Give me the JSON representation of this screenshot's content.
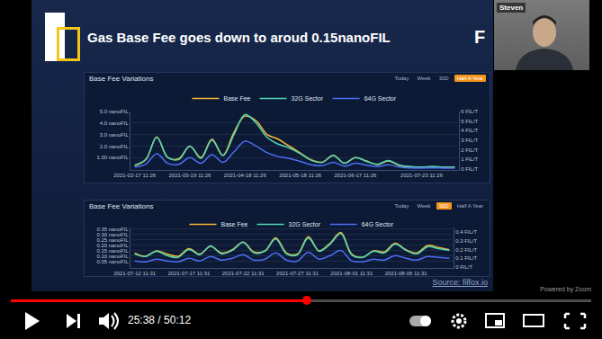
{
  "slide": {
    "title": "Gas Base Fee goes down to aroud 0.15nanoFIL",
    "logo": "F",
    "source": "Source: filfox.io",
    "watermark": "Powered by Zoom"
  },
  "webcam": {
    "name": "Steven"
  },
  "player": {
    "time": "25:38 / 50:12"
  },
  "panels": [
    {
      "buttons": [
        "Today",
        "Week",
        "30D",
        "Half A Year"
      ],
      "selected": "Half A Year"
    },
    {
      "buttons": [
        "Today",
        "Week",
        "30D",
        "Half A Year"
      ],
      "selected": "30D"
    }
  ],
  "chart_data": [
    {
      "type": "line",
      "title": "Base Fee Variations",
      "categories": [
        "2021-02-17 11:26",
        null,
        null,
        null,
        null,
        "2021-03-19 11:26",
        null,
        null,
        null,
        null,
        "2021-04-18 11:26",
        null,
        null,
        null,
        null,
        "2021-05-18 11:26",
        null,
        null,
        null,
        null,
        "2021-06-17 11:26",
        null,
        null,
        null,
        null,
        null,
        "2021-07-23 11:26",
        null,
        null,
        null
      ],
      "series": [
        {
          "name": "Base Fee",
          "color": "#f7b731",
          "values": [
            0.3,
            0.8,
            2.8,
            1.0,
            0.9,
            2.0,
            1.0,
            2.6,
            1.2,
            3.2,
            4.6,
            4.2,
            3.0,
            2.6,
            2.0,
            1.4,
            0.8,
            0.6,
            1.2,
            0.5,
            1.0,
            0.7,
            0.4,
            0.7,
            0.3,
            0.2,
            0.15,
            0.2,
            0.15,
            0.15
          ]
        },
        {
          "name": "32G Sector",
          "color": "#4fd6b4",
          "axis": "y2",
          "values": [
            0.4,
            1.0,
            3.3,
            1.2,
            1.0,
            2.4,
            1.1,
            3.0,
            1.4,
            3.6,
            5.7,
            4.8,
            3.3,
            2.6,
            2.2,
            1.6,
            0.9,
            0.7,
            1.4,
            0.6,
            1.2,
            0.8,
            0.5,
            0.9,
            0.4,
            0.25,
            0.2,
            0.25,
            0.2,
            0.2
          ]
        },
        {
          "name": "64G Sector",
          "color": "#4c6ef5",
          "axis": "y2",
          "values": [
            0.2,
            0.5,
            1.6,
            0.6,
            0.5,
            1.2,
            0.6,
            1.5,
            0.7,
            1.8,
            2.9,
            2.4,
            1.7,
            1.3,
            1.1,
            0.8,
            0.45,
            0.35,
            0.7,
            0.3,
            0.6,
            0.4,
            0.25,
            0.45,
            0.2,
            0.12,
            0.1,
            0.12,
            0.1,
            0.1
          ]
        }
      ],
      "ylim": [
        0,
        5
      ],
      "yticks": [
        {
          "value": 1,
          "label": "1.00 nanoFIL"
        },
        {
          "value": 2,
          "label": "2.0 nanoFIL"
        },
        {
          "value": 3,
          "label": "3.0 nanoFIL"
        },
        {
          "value": 4,
          "label": "4.0 nanoFIL"
        },
        {
          "value": 5,
          "label": "5.0 nanoFIL"
        }
      ],
      "y2lim": [
        0,
        6
      ],
      "y2ticks": [
        {
          "value": 0,
          "label": "0 FIL/T"
        },
        {
          "value": 1,
          "label": "1 FIL/T"
        },
        {
          "value": 2,
          "label": "2 FIL/T"
        },
        {
          "value": 3,
          "label": "3 FIL/T"
        },
        {
          "value": 4,
          "label": "4 FIL/T"
        },
        {
          "value": 5,
          "label": "5 FIL/T"
        },
        {
          "value": 6,
          "label": "6 FIL/T"
        }
      ],
      "grid": true,
      "legend": "top",
      "line_style": "smooth"
    },
    {
      "type": "line",
      "title": "Base Fee Variations",
      "categories": [
        "2021-07-12 11:31",
        null,
        null,
        null,
        null,
        "2021-07-17 11:31",
        null,
        null,
        null,
        null,
        "2021-07-22 11:31",
        null,
        null,
        null,
        null,
        "2021-07-27 11:31",
        null,
        null,
        null,
        null,
        "2021-08-01 11:31",
        null,
        null,
        null,
        null,
        "2021-08-06 11:31",
        null,
        null,
        null,
        null
      ],
      "series": [
        {
          "name": "Base Fee",
          "color": "#f7b731",
          "values": [
            0.13,
            0.1,
            0.15,
            0.12,
            0.1,
            0.17,
            0.12,
            0.19,
            0.13,
            0.16,
            0.23,
            0.14,
            0.15,
            0.27,
            0.13,
            0.12,
            0.28,
            0.15,
            0.22,
            0.32,
            0.12,
            0.09,
            0.15,
            0.14,
            0.22,
            0.16,
            0.13,
            0.2,
            0.18,
            0.16
          ]
        },
        {
          "name": "32G Sector",
          "color": "#4fd6b4",
          "axis": "y2",
          "values": [
            0.15,
            0.12,
            0.18,
            0.13,
            0.11,
            0.2,
            0.14,
            0.24,
            0.15,
            0.19,
            0.28,
            0.16,
            0.18,
            0.32,
            0.15,
            0.14,
            0.33,
            0.18,
            0.26,
            0.38,
            0.14,
            0.11,
            0.18,
            0.16,
            0.26,
            0.19,
            0.15,
            0.23,
            0.21,
            0.19
          ]
        },
        {
          "name": "64G Sector",
          "color": "#4c6ef5",
          "axis": "y2",
          "values": [
            0.07,
            0.06,
            0.09,
            0.07,
            0.06,
            0.1,
            0.07,
            0.12,
            0.08,
            0.1,
            0.14,
            0.08,
            0.09,
            0.16,
            0.08,
            0.07,
            0.17,
            0.09,
            0.13,
            0.19,
            0.07,
            0.06,
            0.09,
            0.08,
            0.13,
            0.1,
            0.08,
            0.12,
            0.11,
            0.1
          ]
        }
      ],
      "ylim": [
        0,
        0.365
      ],
      "yticks": [
        {
          "value": 0.05,
          "label": "0.05 nanoFIL"
        },
        {
          "value": 0.1,
          "label": "0.10 nanoFIL"
        },
        {
          "value": 0.15,
          "label": "0.15 nanoFIL"
        },
        {
          "value": 0.2,
          "label": "0.20 nanoFIL"
        },
        {
          "value": 0.25,
          "label": "0.25 nanoFIL"
        },
        {
          "value": 0.3,
          "label": "0.30 nanoFIL"
        },
        {
          "value": 0.35,
          "label": "0.35 nanoFIL"
        }
      ],
      "y2lim": [
        0,
        0.45
      ],
      "y2ticks": [
        {
          "value": 0,
          "label": "0 FIL/T"
        },
        {
          "value": 0.1,
          "label": "0.1 FIL/T"
        },
        {
          "value": 0.2,
          "label": "0.2 FIL/T"
        },
        {
          "value": 0.3,
          "label": "0.3 FIL/T"
        },
        {
          "value": 0.4,
          "label": "0.4 FIL/T"
        }
      ],
      "grid": true,
      "legend": "top",
      "line_style": "smooth"
    }
  ]
}
